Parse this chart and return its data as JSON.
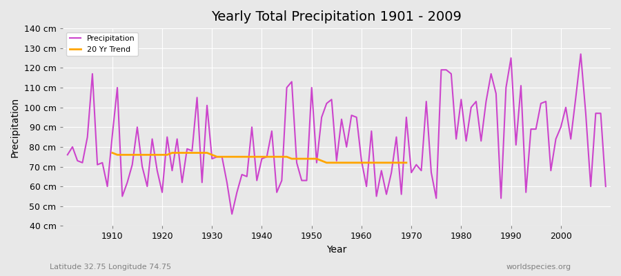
{
  "title": "Yearly Total Precipitation 1901 - 2009",
  "xlabel": "Year",
  "ylabel": "Precipitation",
  "lat_lon_label": "Latitude 32.75 Longitude 74.75",
  "watermark": "worldspecies.org",
  "ylim": [
    40,
    140
  ],
  "ytick_step": 10,
  "bg_color": "#e8e8e8",
  "plot_bg_color": "#e8e8e8",
  "precip_color": "#cc44cc",
  "trend_color": "#ffa500",
  "precip_linewidth": 1.5,
  "trend_linewidth": 2.0,
  "years": [
    1901,
    1902,
    1903,
    1904,
    1905,
    1906,
    1907,
    1908,
    1909,
    1910,
    1911,
    1912,
    1913,
    1914,
    1915,
    1916,
    1917,
    1918,
    1919,
    1920,
    1921,
    1922,
    1923,
    1924,
    1925,
    1926,
    1927,
    1928,
    1929,
    1930,
    1931,
    1932,
    1933,
    1934,
    1935,
    1936,
    1937,
    1938,
    1939,
    1940,
    1941,
    1942,
    1943,
    1944,
    1945,
    1946,
    1947,
    1948,
    1949,
    1950,
    1951,
    1952,
    1953,
    1954,
    1955,
    1956,
    1957,
    1958,
    1959,
    1960,
    1961,
    1962,
    1963,
    1964,
    1965,
    1966,
    1967,
    1968,
    1969,
    1970,
    1971,
    1972,
    1973,
    1974,
    1975,
    1976,
    1977,
    1978,
    1979,
    1980,
    1981,
    1982,
    1983,
    1984,
    1985,
    1986,
    1987,
    1988,
    1989,
    1990,
    1991,
    1992,
    1993,
    1994,
    1995,
    1996,
    1997,
    1998,
    1999,
    2000,
    2001,
    2002,
    2003,
    2004,
    2005,
    2006,
    2007,
    2008,
    2009
  ],
  "precip": [
    76,
    80,
    73,
    72,
    85,
    117,
    71,
    72,
    60,
    86,
    110,
    55,
    62,
    71,
    90,
    70,
    60,
    84,
    68,
    57,
    85,
    68,
    84,
    62,
    79,
    78,
    105,
    62,
    101,
    74,
    75,
    75,
    62,
    46,
    57,
    66,
    65,
    90,
    63,
    74,
    75,
    88,
    57,
    63,
    110,
    113,
    72,
    63,
    63,
    110,
    72,
    95,
    102,
    104,
    73,
    94,
    80,
    96,
    95,
    73,
    60,
    88,
    55,
    68,
    56,
    67,
    85,
    56,
    95,
    67,
    71,
    68,
    103,
    67,
    54,
    119,
    119,
    117,
    84,
    104,
    83,
    100,
    103,
    83,
    103,
    117,
    107,
    54,
    110,
    125,
    81,
    111,
    57,
    89,
    89,
    102,
    103,
    68,
    84,
    90,
    100,
    84,
    105,
    127,
    97,
    60,
    97,
    97,
    60
  ],
  "trend_years": [
    1910,
    1911,
    1912,
    1913,
    1914,
    1915,
    1916,
    1917,
    1918,
    1919,
    1920,
    1921,
    1922,
    1923,
    1924,
    1925,
    1926,
    1927,
    1928,
    1929,
    1930,
    1931,
    1932,
    1933,
    1934,
    1935,
    1936,
    1937,
    1938,
    1939,
    1940,
    1941,
    1942,
    1943,
    1944,
    1945,
    1946,
    1947,
    1948,
    1949,
    1950,
    1951,
    1952,
    1953,
    1954,
    1955,
    1956,
    1957,
    1958,
    1959,
    1960,
    1961,
    1962,
    1963,
    1964,
    1965,
    1966,
    1967,
    1968,
    1969
  ],
  "trend": [
    77,
    76,
    76,
    76,
    76,
    76,
    76,
    76,
    76,
    76,
    76,
    76,
    77,
    77,
    77,
    77,
    77,
    77,
    77,
    77,
    76,
    75,
    75,
    75,
    75,
    75,
    75,
    75,
    75,
    75,
    75,
    75,
    75,
    75,
    75,
    75,
    74,
    74,
    74,
    74,
    74,
    74,
    73,
    72,
    72,
    72,
    72,
    72,
    72,
    72,
    72,
    72,
    72,
    72,
    72,
    72,
    72,
    72,
    72,
    72
  ]
}
